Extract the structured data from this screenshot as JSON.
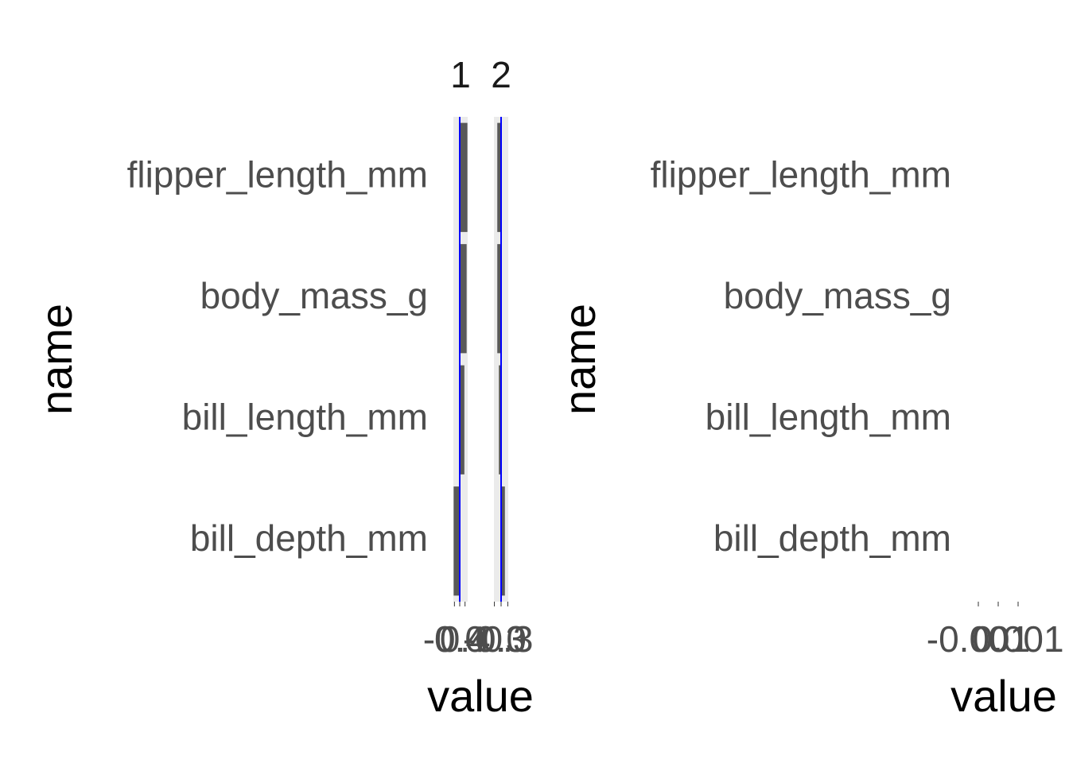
{
  "chart_data": [
    {
      "type": "bar",
      "orientation": "horizontal",
      "xlabel": "value",
      "ylabel": "name",
      "categories": [
        "bill_depth_mm",
        "bill_length_mm",
        "body_mass_g",
        "flipper_length_mm"
      ],
      "color": "#595959",
      "panel_color": "#ebebeb",
      "reference_line": {
        "value": 0,
        "color": "#0000ff"
      },
      "facets": [
        {
          "label": "1",
          "values": [
            -0.46,
            0.35,
            0.52,
            0.58
          ],
          "xlim": [
            -0.48,
            0.6
          ],
          "xticks": [
            -0.4,
            {
              "value": 0,
              "label": "0.0"
            },
            0.4
          ]
        },
        {
          "label": "2",
          "values": [
            0.17,
            -0.1,
            -0.17,
            -0.17
          ],
          "xlim": [
            -0.32,
            0.32
          ],
          "xticks": [
            -0.3,
            {
              "value": 0,
              "label": "0.0"
            },
            0.3
          ]
        }
      ]
    },
    {
      "type": "bar",
      "orientation": "horizontal",
      "xlabel": "value",
      "ylabel": "name",
      "categories": [
        "bill_depth_mm",
        "bill_length_mm",
        "body_mass_g",
        "flipper_length_mm"
      ],
      "xlim": [
        -0.001,
        0.001
      ],
      "xticks": [
        -0.001,
        0,
        0.001
      ]
    }
  ]
}
